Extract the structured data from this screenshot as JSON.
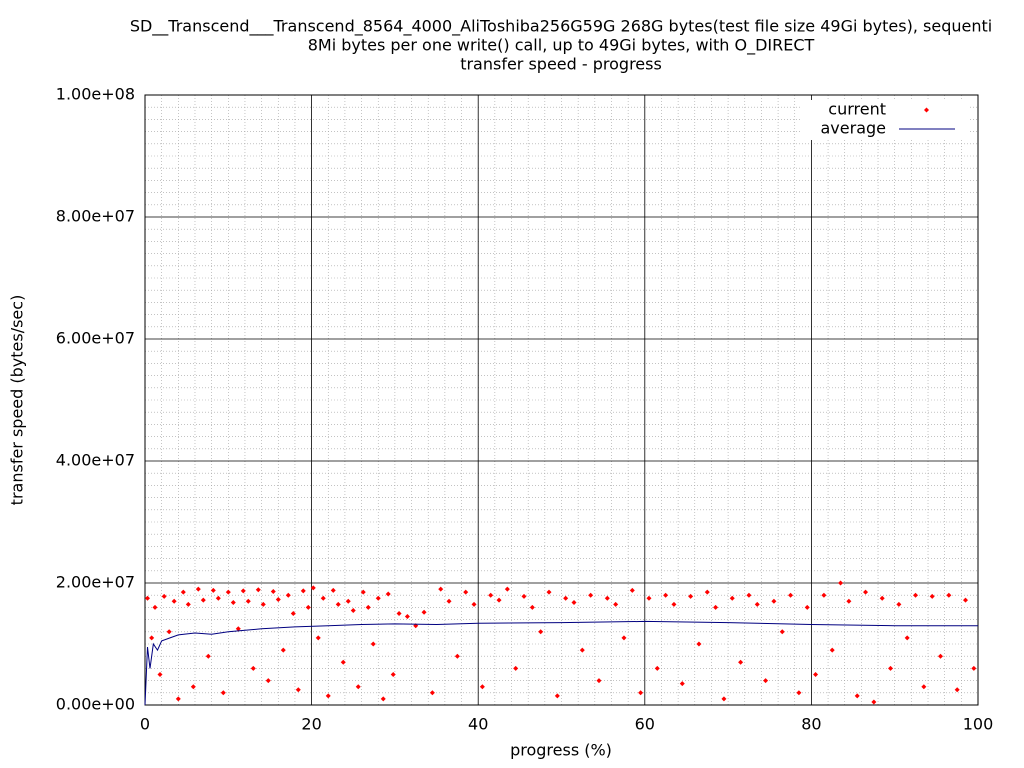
{
  "chart_data": {
    "type": "scatter",
    "title": [
      "SD__Transcend___Transcend_8564_4000_AliToshiba256G59G 268G bytes(test file size 49Gi bytes), sequenti",
      "8Mi bytes per one write() call, up to 49Gi bytes, with O_DIRECT",
      "transfer speed - progress"
    ],
    "xlabel": "progress (%)",
    "ylabel": "transfer speed (bytes/sec)",
    "xlim": [
      0,
      100
    ],
    "xticks": [
      0,
      20,
      40,
      60,
      80,
      100
    ],
    "ylim": [
      0,
      100000000.0
    ],
    "yticks": [
      {
        "value": 0,
        "label": "0.00e+00"
      },
      {
        "value": 20000000.0,
        "label": "2.00e+07"
      },
      {
        "value": 40000000.0,
        "label": "4.00e+07"
      },
      {
        "value": 60000000.0,
        "label": "6.00e+07"
      },
      {
        "value": 80000000.0,
        "label": "8.00e+07"
      },
      {
        "value": 100000000.0,
        "label": "1.00e+08"
      }
    ],
    "grid": true,
    "legend": "upper right",
    "series": [
      {
        "name": "current",
        "color": "#ff0000",
        "kind": "points",
        "x": [
          0.3,
          0.8,
          1.2,
          1.8,
          2.3,
          2.9,
          3.5,
          4,
          4.6,
          5.2,
          5.8,
          6.4,
          7,
          7.6,
          8.2,
          8.8,
          9.4,
          10,
          10.6,
          11.2,
          11.8,
          12.4,
          13,
          13.6,
          14.2,
          14.8,
          15.4,
          16,
          16.6,
          17.2,
          17.8,
          18.4,
          19,
          19.6,
          20.2,
          20.8,
          21.4,
          22,
          22.6,
          23.2,
          23.8,
          24.4,
          25,
          25.6,
          26.2,
          26.8,
          27.4,
          28,
          28.6,
          29.2,
          29.8,
          30.5,
          31.5,
          32.5,
          33.5,
          34.5,
          35.5,
          36.5,
          37.5,
          38.5,
          39.5,
          40.5,
          41.5,
          42.5,
          43.5,
          44.5,
          45.5,
          46.5,
          47.5,
          48.5,
          49.5,
          50.5,
          51.5,
          52.5,
          53.5,
          54.5,
          55.5,
          56.5,
          57.5,
          58.5,
          59.5,
          60.5,
          61.5,
          62.5,
          63.5,
          64.5,
          65.5,
          66.5,
          67.5,
          68.5,
          69.5,
          70.5,
          71.5,
          72.5,
          73.5,
          74.5,
          75.5,
          76.5,
          77.5,
          78.5,
          79.5,
          80.5,
          81.5,
          82.5,
          83.5,
          84.5,
          85.5,
          86.5,
          87.5,
          88.5,
          89.5,
          90.5,
          91.5,
          92.5,
          93.5,
          94.5,
          95.5,
          96.5,
          97.5,
          98.5,
          99.5
        ],
        "values": [
          17500000.0,
          11000000.0,
          16000000.0,
          5000000.0,
          17800000.0,
          12000000.0,
          17000000.0,
          1000000.0,
          18500000.0,
          16500000.0,
          3000000.0,
          19000000.0,
          17200000.0,
          8000000.0,
          18800000.0,
          17500000.0,
          2000000.0,
          18500000.0,
          16800000.0,
          12500000.0,
          18700000.0,
          17000000.0,
          6000000.0,
          18900000.0,
          16500000.0,
          4000000.0,
          18600000.0,
          17300000.0,
          9000000.0,
          18000000.0,
          15000000.0,
          2500000.0,
          18700000.0,
          16000000.0,
          19200000.0,
          11000000.0,
          17500000.0,
          1500000.0,
          18800000.0,
          16500000.0,
          7000000.0,
          17000000.0,
          15500000.0,
          3000000.0,
          18500000.0,
          16000000.0,
          10000000.0,
          17500000.0,
          1000000.0,
          18200000.0,
          5000000.0,
          15000000.0,
          14500000.0,
          13000000.0,
          15200000.0,
          2000000.0,
          19000000.0,
          17000000.0,
          8000000.0,
          18500000.0,
          16500000.0,
          3000000.0,
          18000000.0,
          17200000.0,
          19000000.0,
          6000000.0,
          17800000.0,
          16000000.0,
          12000000.0,
          18500000.0,
          1500000.0,
          17500000.0,
          16800000.0,
          9000000.0,
          18000000.0,
          4000000.0,
          17500000.0,
          16500000.0,
          11000000.0,
          18800000.0,
          2000000.0,
          17500000.0,
          6000000.0,
          18000000.0,
          16500000.0,
          3500000.0,
          17800000.0,
          10000000.0,
          18500000.0,
          16000000.0,
          1000000.0,
          17500000.0,
          7000000.0,
          18000000.0,
          16500000.0,
          4000000.0,
          17000000.0,
          12000000.0,
          18000000.0,
          2000000.0,
          16000000.0,
          5000000.0,
          18000000.0,
          9000000.0,
          20000000.0,
          17000000.0,
          1500000.0,
          18500000.0,
          500000.0,
          17500000.0,
          6000000.0,
          16500000.0,
          11000000.0,
          18000000.0,
          3000000.0,
          17800000.0,
          8000000.0,
          18000000.0,
          2500000.0,
          17200000.0,
          6000000.0
        ]
      },
      {
        "name": "average",
        "color": "#000080",
        "kind": "line",
        "x": [
          0,
          0.3,
          0.6,
          1,
          1.5,
          2,
          3,
          4,
          6,
          8,
          10,
          14,
          18,
          22,
          26,
          30,
          35,
          40,
          50,
          60,
          70,
          80,
          90,
          100
        ],
        "values": [
          0,
          9500000.0,
          6000000.0,
          10000000.0,
          9000000.0,
          10500000.0,
          11000000.0,
          11500000.0,
          11800000.0,
          11600000.0,
          12000000.0,
          12500000.0,
          12800000.0,
          13000000.0,
          13200000.0,
          13300000.0,
          13200000.0,
          13400000.0,
          13500000.0,
          13700000.0,
          13500000.0,
          13200000.0,
          13000000.0,
          13000000.0
        ]
      }
    ]
  }
}
